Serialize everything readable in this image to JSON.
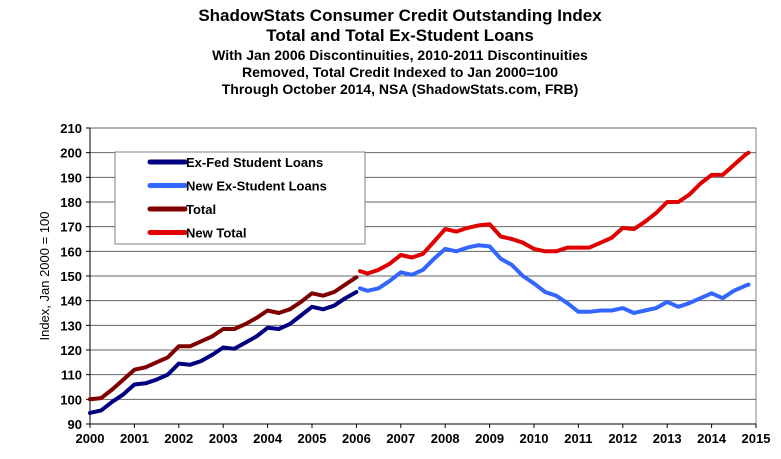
{
  "chart_data": {
    "type": "line",
    "title": [
      "ShadowStats Consumer Credit Outstanding Index",
      "Total and Total Ex-Student Loans"
    ],
    "subtitle": [
      "With Jan 2006 Discontinuities, 2010-2011 Discontinuities",
      "Removed, Total Credit Indexed to Jan 2000=100",
      "Through October 2014, NSA (ShadowStats.com, FRB)"
    ],
    "xlabel": "",
    "ylabel": "Index,  Jan 2000 = 100",
    "xlim": [
      2000,
      2015
    ],
    "ylim": [
      90,
      210
    ],
    "xticks": [
      "2000",
      "2001",
      "2002",
      "2003",
      "2004",
      "2005",
      "2006",
      "2007",
      "2008",
      "2009",
      "2010",
      "2011",
      "2012",
      "2013",
      "2014",
      "2015"
    ],
    "yticks": [
      "90",
      "100",
      "110",
      "120",
      "130",
      "140",
      "150",
      "160",
      "170",
      "180",
      "190",
      "200",
      "210"
    ],
    "grid": true,
    "legend_position": "top-left",
    "series": [
      {
        "name": "Ex-Fed Student Loans",
        "color": "#000080",
        "x": [
          2000,
          2000.25,
          2000.5,
          2000.75,
          2001,
          2001.25,
          2001.5,
          2001.75,
          2002,
          2002.25,
          2002.5,
          2002.75,
          2003,
          2003.25,
          2003.5,
          2003.75,
          2004,
          2004.25,
          2004.5,
          2004.75,
          2005,
          2005.25,
          2005.5,
          2005.75,
          2006
        ],
        "y": [
          94.5,
          95.5,
          99,
          102,
          106,
          106.5,
          108,
          110,
          114.5,
          114,
          115.5,
          118,
          121,
          120.5,
          123,
          125.5,
          129,
          128.5,
          130.5,
          134,
          137.5,
          136.5,
          138,
          141,
          143.5
        ]
      },
      {
        "name": "New Ex-Student Loans",
        "color": "#3366ff",
        "x": [
          2006.08,
          2006.25,
          2006.5,
          2006.75,
          2007,
          2007.25,
          2007.5,
          2007.75,
          2008,
          2008.25,
          2008.5,
          2008.75,
          2009,
          2009.25,
          2009.5,
          2009.75,
          2010,
          2010.25,
          2010.5,
          2010.75,
          2011,
          2011.25,
          2011.5,
          2011.75,
          2012,
          2012.25,
          2012.5,
          2012.75,
          2013,
          2013.25,
          2013.5,
          2013.75,
          2014,
          2014.25,
          2014.5,
          2014.75,
          2014.83
        ],
        "y": [
          145,
          144,
          145,
          148,
          151.5,
          150.5,
          152.5,
          157,
          161,
          160,
          161.5,
          162.5,
          162,
          157,
          154.5,
          150,
          147,
          143.5,
          142,
          139,
          135.5,
          135.5,
          136,
          136,
          137,
          135,
          136,
          137,
          139.5,
          137.5,
          139,
          141,
          143,
          141,
          144,
          146,
          146.5
        ]
      },
      {
        "name": "Total",
        "color": "#800000",
        "x": [
          2000,
          2000.25,
          2000.5,
          2000.75,
          2001,
          2001.25,
          2001.5,
          2001.75,
          2002,
          2002.25,
          2002.5,
          2002.75,
          2003,
          2003.25,
          2003.5,
          2003.75,
          2004,
          2004.25,
          2004.5,
          2004.75,
          2005,
          2005.25,
          2005.5,
          2005.75,
          2006
        ],
        "y": [
          100,
          100.5,
          104,
          108,
          112,
          113,
          115,
          117,
          121.5,
          121.5,
          123.5,
          125.5,
          128.5,
          128.5,
          130.5,
          133,
          136,
          135,
          136.5,
          139.5,
          143,
          142,
          143.5,
          146.5,
          149.5
        ]
      },
      {
        "name": "New Total",
        "color": "#e00000",
        "x": [
          2006.08,
          2006.25,
          2006.5,
          2006.75,
          2007,
          2007.25,
          2007.5,
          2007.75,
          2008,
          2008.25,
          2008.5,
          2008.75,
          2009,
          2009.25,
          2009.5,
          2009.75,
          2010,
          2010.25,
          2010.5,
          2010.75,
          2011,
          2011.25,
          2011.5,
          2011.75,
          2012,
          2012.25,
          2012.5,
          2012.75,
          2013,
          2013.25,
          2013.5,
          2013.75,
          2014,
          2014.25,
          2014.5,
          2014.75,
          2014.83
        ],
        "y": [
          152,
          151,
          152.5,
          155,
          158.5,
          157.5,
          159,
          164,
          169,
          168,
          169.5,
          170.5,
          171,
          166,
          165,
          163.5,
          161,
          160,
          160,
          161.5,
          161.5,
          161.5,
          163.5,
          165.5,
          169.5,
          169,
          172,
          175.5,
          180,
          180,
          183,
          187.5,
          191,
          191,
          195,
          199,
          200
        ]
      }
    ]
  }
}
